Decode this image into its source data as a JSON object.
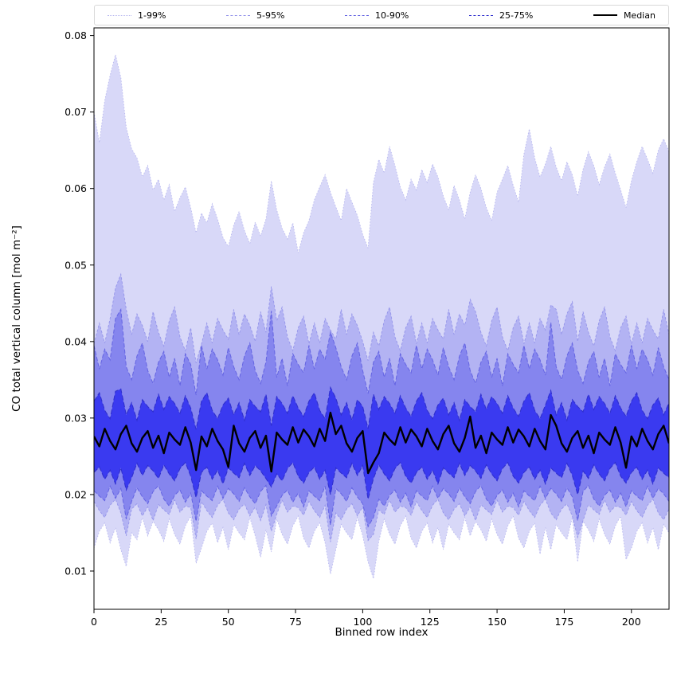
{
  "figure": {
    "background": "#ffffff"
  },
  "legend": {
    "entries": [
      {
        "label": "1-99%",
        "color": "#b9b9ef",
        "style": "dotted"
      },
      {
        "label": "5-95%",
        "color": "#9595ea",
        "style": "dashed"
      },
      {
        "label": "10-90%",
        "color": "#6464e2",
        "style": "dashed"
      },
      {
        "label": "25-75%",
        "color": "#3030ce",
        "style": "dashed"
      },
      {
        "label": "Median",
        "color": "#000000",
        "style": "solid"
      }
    ]
  },
  "chart_data": {
    "type": "area",
    "subtype": "percentile-fan-chart",
    "title": "",
    "xlabel": "Binned row index",
    "ylabel": "CO total vertical column [mol m⁻²]",
    "xlim": [
      0,
      214
    ],
    "ylim": [
      0.005,
      0.081
    ],
    "xticks": [
      0,
      25,
      50,
      75,
      100,
      125,
      150,
      175,
      200
    ],
    "yticks": [
      0.01,
      0.02,
      0.03,
      0.04,
      0.05,
      0.06,
      0.07,
      0.08
    ],
    "grid": false,
    "legend_position": "top",
    "bands": [
      {
        "name": "1-99%",
        "lower": "p1",
        "upper": "p99",
        "fill": "#d8d8f8",
        "edge": "#b9b9ef",
        "dash": "1.5 2.2",
        "edge_width": 0.9
      },
      {
        "name": "5-95%",
        "lower": "p5",
        "upper": "p95",
        "fill": "#b3b3f3",
        "edge": "#9595ea",
        "dash": "3 2.2",
        "edge_width": 0.9
      },
      {
        "name": "10-90%",
        "lower": "p10",
        "upper": "p90",
        "fill": "#8585ee",
        "edge": "#6464e2",
        "dash": "5 2.5",
        "edge_width": 1.0
      },
      {
        "name": "25-75%",
        "lower": "p25",
        "upper": "p75",
        "fill": "#3a3af0",
        "edge": "#3030ce",
        "dash": "6 3",
        "edge_width": 1.1
      }
    ],
    "median_style": {
      "color": "#000000",
      "width": 2.4
    },
    "x": [
      0,
      2,
      4,
      6,
      8,
      10,
      12,
      14,
      16,
      18,
      20,
      22,
      24,
      26,
      28,
      30,
      32,
      34,
      36,
      38,
      40,
      42,
      44,
      46,
      48,
      50,
      52,
      54,
      56,
      58,
      60,
      62,
      64,
      66,
      68,
      70,
      72,
      74,
      76,
      78,
      80,
      82,
      84,
      86,
      88,
      90,
      92,
      94,
      96,
      98,
      100,
      102,
      104,
      106,
      108,
      110,
      112,
      114,
      116,
      118,
      120,
      122,
      124,
      126,
      128,
      130,
      132,
      134,
      136,
      138,
      140,
      142,
      144,
      146,
      148,
      150,
      152,
      154,
      156,
      158,
      160,
      162,
      164,
      166,
      168,
      170,
      172,
      174,
      176,
      178,
      180,
      182,
      184,
      186,
      188,
      190,
      192,
      194,
      196,
      198,
      200,
      202,
      204,
      206,
      208,
      210,
      212,
      214
    ],
    "series": {
      "p99": [
        0.07,
        0.066,
        0.0715,
        0.0748,
        0.0775,
        0.0745,
        0.068,
        0.0652,
        0.064,
        0.0615,
        0.063,
        0.0598,
        0.0612,
        0.0585,
        0.0605,
        0.057,
        0.0588,
        0.0602,
        0.0575,
        0.0542,
        0.0568,
        0.0555,
        0.058,
        0.056,
        0.0536,
        0.0524,
        0.0552,
        0.057,
        0.0545,
        0.0528,
        0.0556,
        0.0538,
        0.056,
        0.061,
        0.0572,
        0.0548,
        0.0534,
        0.0555,
        0.0516,
        0.0542,
        0.0558,
        0.0585,
        0.0602,
        0.0618,
        0.0595,
        0.0576,
        0.0558,
        0.06,
        0.0582,
        0.0565,
        0.054,
        0.0522,
        0.0608,
        0.0638,
        0.062,
        0.0655,
        0.063,
        0.0602,
        0.0585,
        0.0612,
        0.0598,
        0.0625,
        0.0608,
        0.0632,
        0.0615,
        0.059,
        0.0572,
        0.0604,
        0.0585,
        0.056,
        0.0595,
        0.0618,
        0.06,
        0.0575,
        0.0558,
        0.0595,
        0.0612,
        0.063,
        0.0604,
        0.0582,
        0.0645,
        0.0678,
        0.064,
        0.0615,
        0.0632,
        0.0655,
        0.0628,
        0.061,
        0.0635,
        0.0618,
        0.059,
        0.0625,
        0.0648,
        0.063,
        0.0605,
        0.0628,
        0.0645,
        0.062,
        0.0598,
        0.0575,
        0.061,
        0.0635,
        0.0655,
        0.0638,
        0.062,
        0.065,
        0.0665,
        0.0648
      ],
      "p95": [
        0.0397,
        0.0424,
        0.0398,
        0.043,
        0.047,
        0.0488,
        0.0442,
        0.0409,
        0.0436,
        0.0421,
        0.04,
        0.0439,
        0.0412,
        0.0394,
        0.0427,
        0.0445,
        0.0406,
        0.0388,
        0.0418,
        0.0372,
        0.0397,
        0.0424,
        0.0398,
        0.043,
        0.0415,
        0.0403,
        0.0442,
        0.0409,
        0.0436,
        0.0421,
        0.04,
        0.0439,
        0.0412,
        0.0472,
        0.0427,
        0.0445,
        0.0406,
        0.0388,
        0.0418,
        0.0433,
        0.0397,
        0.0424,
        0.0398,
        0.043,
        0.0415,
        0.0403,
        0.0442,
        0.0409,
        0.0436,
        0.0421,
        0.04,
        0.0375,
        0.0412,
        0.0394,
        0.0427,
        0.0445,
        0.0406,
        0.0388,
        0.0418,
        0.0433,
        0.0397,
        0.0424,
        0.0398,
        0.043,
        0.0415,
        0.0403,
        0.0442,
        0.0409,
        0.0436,
        0.0421,
        0.0455,
        0.0439,
        0.0412,
        0.0394,
        0.0427,
        0.0445,
        0.0406,
        0.0388,
        0.0418,
        0.0433,
        0.0397,
        0.0424,
        0.0398,
        0.043,
        0.0415,
        0.0448,
        0.0442,
        0.0409,
        0.0436,
        0.0452,
        0.04,
        0.0439,
        0.0412,
        0.0394,
        0.0427,
        0.0445,
        0.0406,
        0.0388,
        0.0418,
        0.0433,
        0.0397,
        0.0424,
        0.0398,
        0.043,
        0.0415,
        0.0403,
        0.0442,
        0.0409
      ],
      "p90": [
        0.0395,
        0.0364,
        0.039,
        0.0376,
        0.043,
        0.0442,
        0.0367,
        0.035,
        0.0381,
        0.0398,
        0.0362,
        0.0345,
        0.0373,
        0.0387,
        0.0353,
        0.0378,
        0.0342,
        0.0384,
        0.037,
        0.033,
        0.0395,
        0.0364,
        0.039,
        0.0376,
        0.0356,
        0.0392,
        0.0367,
        0.035,
        0.0381,
        0.0398,
        0.0362,
        0.0345,
        0.0373,
        0.044,
        0.0353,
        0.0378,
        0.0342,
        0.0384,
        0.037,
        0.0359,
        0.0395,
        0.0364,
        0.039,
        0.0376,
        0.0412,
        0.0392,
        0.0367,
        0.035,
        0.0381,
        0.0398,
        0.0362,
        0.0332,
        0.0373,
        0.0387,
        0.0353,
        0.0378,
        0.0342,
        0.0384,
        0.037,
        0.0359,
        0.0395,
        0.0364,
        0.039,
        0.0376,
        0.0356,
        0.0392,
        0.0367,
        0.035,
        0.0381,
        0.0398,
        0.0362,
        0.0345,
        0.0373,
        0.0387,
        0.0353,
        0.0378,
        0.0342,
        0.0384,
        0.037,
        0.0359,
        0.0395,
        0.0364,
        0.039,
        0.0376,
        0.0356,
        0.0425,
        0.0367,
        0.035,
        0.0381,
        0.0398,
        0.0362,
        0.0345,
        0.0373,
        0.0387,
        0.0353,
        0.0378,
        0.0342,
        0.0384,
        0.037,
        0.0359,
        0.0395,
        0.0364,
        0.039,
        0.0376,
        0.0356,
        0.0392,
        0.0367,
        0.035
      ],
      "p75": [
        0.0322,
        0.0333,
        0.031,
        0.0299,
        0.0335,
        0.0338,
        0.0304,
        0.032,
        0.0297,
        0.0324,
        0.0315,
        0.0308,
        0.0331,
        0.0311,
        0.0328,
        0.0319,
        0.0306,
        0.0329,
        0.0313,
        0.0285,
        0.0322,
        0.0333,
        0.031,
        0.0299,
        0.0317,
        0.0326,
        0.0304,
        0.032,
        0.0297,
        0.0324,
        0.0315,
        0.0308,
        0.0331,
        0.029,
        0.0328,
        0.0319,
        0.0306,
        0.0329,
        0.0313,
        0.0302,
        0.0322,
        0.0333,
        0.031,
        0.0299,
        0.034,
        0.0326,
        0.0304,
        0.032,
        0.0297,
        0.0324,
        0.0315,
        0.0286,
        0.0331,
        0.0311,
        0.0328,
        0.0319,
        0.0306,
        0.0329,
        0.0313,
        0.0302,
        0.0322,
        0.0333,
        0.031,
        0.0299,
        0.0317,
        0.0326,
        0.0304,
        0.032,
        0.0297,
        0.0324,
        0.0315,
        0.0308,
        0.0331,
        0.0311,
        0.0328,
        0.0319,
        0.0306,
        0.0329,
        0.0313,
        0.0302,
        0.0322,
        0.0333,
        0.031,
        0.0299,
        0.0317,
        0.0336,
        0.0304,
        0.032,
        0.0297,
        0.0324,
        0.0315,
        0.0308,
        0.0331,
        0.0311,
        0.0328,
        0.0319,
        0.0306,
        0.0329,
        0.0313,
        0.0302,
        0.0322,
        0.0333,
        0.031,
        0.0299,
        0.0317,
        0.0326,
        0.0304,
        0.032
      ],
      "median": [
        0.0276,
        0.0263,
        0.0286,
        0.027,
        0.0259,
        0.0279,
        0.029,
        0.0267,
        0.0256,
        0.0274,
        0.0283,
        0.0261,
        0.0277,
        0.0254,
        0.0281,
        0.0272,
        0.0265,
        0.0288,
        0.0268,
        0.0232,
        0.0276,
        0.0263,
        0.0286,
        0.027,
        0.0259,
        0.0236,
        0.029,
        0.0267,
        0.0256,
        0.0274,
        0.0283,
        0.0261,
        0.0277,
        0.023,
        0.0281,
        0.0272,
        0.0265,
        0.0288,
        0.0268,
        0.0285,
        0.0276,
        0.0263,
        0.0286,
        0.027,
        0.0307,
        0.0279,
        0.029,
        0.0267,
        0.0256,
        0.0274,
        0.0283,
        0.0228,
        0.0242,
        0.0254,
        0.0281,
        0.0272,
        0.0265,
        0.0288,
        0.0268,
        0.0285,
        0.0276,
        0.0263,
        0.0286,
        0.027,
        0.0259,
        0.0279,
        0.029,
        0.0267,
        0.0256,
        0.0274,
        0.0302,
        0.0261,
        0.0277,
        0.0254,
        0.0281,
        0.0272,
        0.0265,
        0.0288,
        0.0268,
        0.0285,
        0.0276,
        0.0263,
        0.0286,
        0.027,
        0.0259,
        0.0304,
        0.029,
        0.0267,
        0.0256,
        0.0274,
        0.0283,
        0.0261,
        0.0277,
        0.0254,
        0.0281,
        0.0272,
        0.0265,
        0.0288,
        0.0268,
        0.0235,
        0.0276,
        0.0263,
        0.0286,
        0.027,
        0.0259,
        0.0279,
        0.029,
        0.0267
      ],
      "p25": [
        0.0229,
        0.0236,
        0.022,
        0.0232,
        0.0214,
        0.0235,
        0.0206,
        0.0222,
        0.0241,
        0.0225,
        0.0238,
        0.0231,
        0.0221,
        0.0239,
        0.0227,
        0.0218,
        0.0234,
        0.0242,
        0.0224,
        0.0196,
        0.0229,
        0.0236,
        0.022,
        0.0232,
        0.0214,
        0.0235,
        0.0228,
        0.0222,
        0.0241,
        0.0225,
        0.0238,
        0.0231,
        0.0221,
        0.021,
        0.0227,
        0.0218,
        0.0234,
        0.0242,
        0.0224,
        0.0215,
        0.0229,
        0.0236,
        0.022,
        0.0232,
        0.02,
        0.0235,
        0.0228,
        0.0222,
        0.0241,
        0.0225,
        0.0238,
        0.0194,
        0.0221,
        0.0239,
        0.0227,
        0.0218,
        0.0234,
        0.0242,
        0.0224,
        0.0215,
        0.0229,
        0.0236,
        0.022,
        0.0232,
        0.0214,
        0.0235,
        0.0228,
        0.0222,
        0.0241,
        0.0225,
        0.0238,
        0.0231,
        0.0221,
        0.0239,
        0.0227,
        0.0218,
        0.0234,
        0.0242,
        0.0224,
        0.0215,
        0.0229,
        0.0236,
        0.022,
        0.0232,
        0.0214,
        0.0235,
        0.0228,
        0.0222,
        0.0241,
        0.0225,
        0.02,
        0.0231,
        0.0221,
        0.0239,
        0.0227,
        0.0218,
        0.0234,
        0.0242,
        0.0224,
        0.0215,
        0.0229,
        0.0236,
        0.022,
        0.0232,
        0.0214,
        0.0235,
        0.0228,
        0.0222
      ],
      "p10": [
        0.0205,
        0.0198,
        0.0192,
        0.0211,
        0.0195,
        0.0208,
        0.0168,
        0.0191,
        0.0209,
        0.0197,
        0.0188,
        0.0204,
        0.0212,
        0.0194,
        0.0185,
        0.0199,
        0.0206,
        0.019,
        0.0202,
        0.0165,
        0.0205,
        0.0198,
        0.0192,
        0.0211,
        0.0195,
        0.0208,
        0.0201,
        0.0191,
        0.0209,
        0.0197,
        0.0188,
        0.0204,
        0.0212,
        0.0172,
        0.0185,
        0.0199,
        0.0206,
        0.019,
        0.0202,
        0.0184,
        0.0205,
        0.0198,
        0.0192,
        0.0211,
        0.016,
        0.0208,
        0.0201,
        0.0191,
        0.0209,
        0.0197,
        0.0188,
        0.0158,
        0.017,
        0.0194,
        0.0185,
        0.0199,
        0.0206,
        0.019,
        0.0202,
        0.0184,
        0.0205,
        0.0198,
        0.0192,
        0.0211,
        0.0195,
        0.0208,
        0.0201,
        0.0191,
        0.0209,
        0.0197,
        0.0188,
        0.0204,
        0.0212,
        0.0194,
        0.0185,
        0.0199,
        0.0206,
        0.019,
        0.0202,
        0.0184,
        0.0205,
        0.0198,
        0.0192,
        0.0211,
        0.0195,
        0.0208,
        0.0201,
        0.0191,
        0.0209,
        0.0197,
        0.0166,
        0.0204,
        0.0212,
        0.0194,
        0.0185,
        0.0199,
        0.0206,
        0.019,
        0.0202,
        0.0184,
        0.0205,
        0.0198,
        0.0192,
        0.0211,
        0.0195,
        0.0208,
        0.0201,
        0.0191
      ],
      "p5": [
        0.0191,
        0.0179,
        0.017,
        0.0186,
        0.0194,
        0.0176,
        0.0146,
        0.0181,
        0.0188,
        0.0172,
        0.0184,
        0.0166,
        0.0187,
        0.018,
        0.0174,
        0.0193,
        0.0177,
        0.0185,
        0.0183,
        0.0142,
        0.0191,
        0.0179,
        0.017,
        0.0186,
        0.0194,
        0.0176,
        0.0167,
        0.0181,
        0.0188,
        0.0172,
        0.0184,
        0.0166,
        0.0187,
        0.0152,
        0.0174,
        0.0193,
        0.0177,
        0.0185,
        0.0183,
        0.0173,
        0.0191,
        0.0179,
        0.017,
        0.0186,
        0.0138,
        0.0176,
        0.0167,
        0.0181,
        0.0188,
        0.0172,
        0.0184,
        0.014,
        0.0148,
        0.018,
        0.0174,
        0.0193,
        0.0177,
        0.0185,
        0.0183,
        0.0173,
        0.0191,
        0.0179,
        0.017,
        0.0186,
        0.0194,
        0.0176,
        0.0167,
        0.0181,
        0.0188,
        0.0172,
        0.0184,
        0.0166,
        0.0187,
        0.018,
        0.0174,
        0.0193,
        0.0177,
        0.0185,
        0.0183,
        0.0173,
        0.0191,
        0.0179,
        0.017,
        0.0186,
        0.0194,
        0.0176,
        0.0167,
        0.0181,
        0.0188,
        0.0172,
        0.0144,
        0.0166,
        0.0187,
        0.018,
        0.0174,
        0.0193,
        0.0177,
        0.0185,
        0.0183,
        0.0173,
        0.0191,
        0.0179,
        0.017,
        0.0186,
        0.0194,
        0.0176,
        0.0167,
        0.0181
      ],
      "p1": [
        0.013,
        0.0152,
        0.0163,
        0.0137,
        0.0157,
        0.0128,
        0.0106,
        0.015,
        0.0141,
        0.017,
        0.0146,
        0.0165,
        0.0154,
        0.0139,
        0.0168,
        0.0148,
        0.0135,
        0.0159,
        0.0172,
        0.011,
        0.013,
        0.0152,
        0.0163,
        0.0137,
        0.0157,
        0.0128,
        0.0161,
        0.015,
        0.0141,
        0.017,
        0.0146,
        0.0118,
        0.0154,
        0.0125,
        0.0168,
        0.0148,
        0.0135,
        0.0159,
        0.0172,
        0.0143,
        0.013,
        0.0152,
        0.0163,
        0.0137,
        0.0096,
        0.0128,
        0.0161,
        0.015,
        0.0141,
        0.017,
        0.0146,
        0.0112,
        0.009,
        0.0139,
        0.0168,
        0.0148,
        0.0135,
        0.0159,
        0.0172,
        0.0143,
        0.013,
        0.0152,
        0.0163,
        0.0137,
        0.0157,
        0.0128,
        0.0161,
        0.015,
        0.0141,
        0.017,
        0.0146,
        0.0165,
        0.0154,
        0.0139,
        0.0168,
        0.0148,
        0.0135,
        0.0159,
        0.0172,
        0.0143,
        0.013,
        0.0152,
        0.0163,
        0.0122,
        0.0157,
        0.0128,
        0.0161,
        0.015,
        0.0141,
        0.017,
        0.0112,
        0.0165,
        0.0154,
        0.0139,
        0.0168,
        0.0148,
        0.0135,
        0.0159,
        0.0172,
        0.0115,
        0.013,
        0.0152,
        0.0163,
        0.0137,
        0.0157,
        0.0128,
        0.0161,
        0.015
      ]
    }
  }
}
